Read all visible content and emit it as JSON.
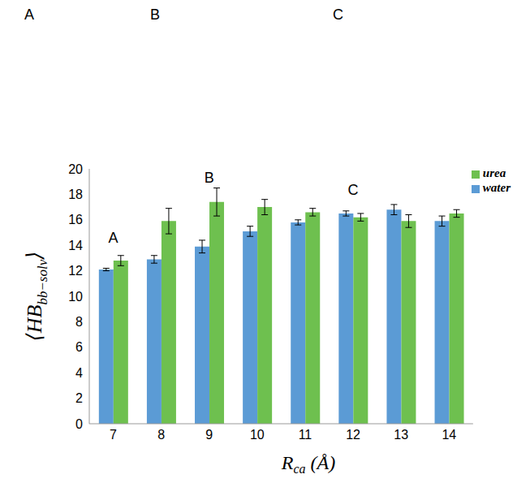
{
  "chart_data": {
    "type": "bar",
    "panel_labels": [
      "A",
      "B",
      "C"
    ],
    "x_label": [
      "R",
      "ca",
      " (Å)"
    ],
    "y_label": [
      "⟨HB",
      "bb−solv",
      "⟩"
    ],
    "categories": [
      7,
      8,
      9,
      10,
      11,
      12,
      13,
      14
    ],
    "series": [
      {
        "name": "water",
        "color": "#5b9bd5",
        "values": [
          12.1,
          12.9,
          13.9,
          15.1,
          15.8,
          16.5,
          16.8,
          15.9
        ],
        "errors": [
          0.1,
          0.3,
          0.5,
          0.4,
          0.2,
          0.2,
          0.4,
          0.4
        ]
      },
      {
        "name": "urea",
        "color": "#6ec04f",
        "values": [
          12.8,
          15.9,
          17.4,
          17.0,
          16.6,
          16.2,
          15.9,
          16.5
        ],
        "errors": [
          0.4,
          1.0,
          1.1,
          0.6,
          0.3,
          0.3,
          0.5,
          0.3
        ]
      }
    ],
    "annotations": [
      {
        "text": "A",
        "x": 7,
        "y": 14.6
      },
      {
        "text": "B",
        "x": 9,
        "y": 19.3
      },
      {
        "text": "C",
        "x": 12,
        "y": 18.4
      }
    ],
    "ylim": [
      0,
      20
    ],
    "yticks": [
      0,
      2,
      4,
      6,
      8,
      10,
      12,
      14,
      16,
      18,
      20
    ],
    "grid": false,
    "legend": "upper right"
  }
}
